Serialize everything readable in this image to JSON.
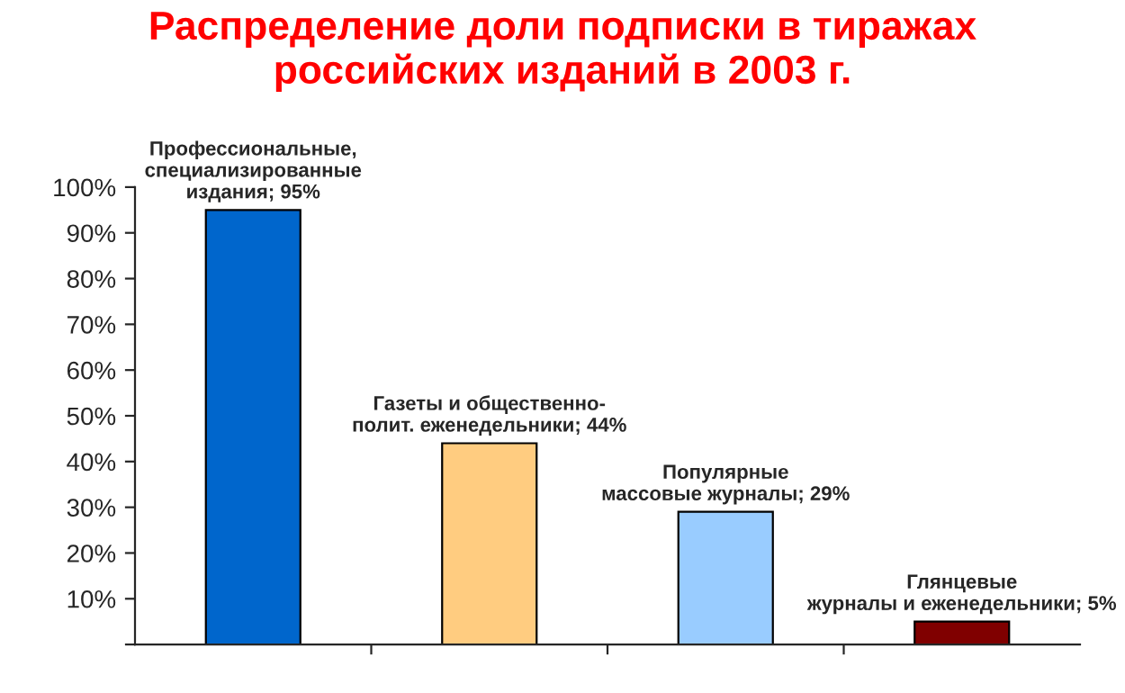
{
  "chart_data": {
    "type": "bar",
    "title": "Распределение доли подписки в тиражах\nроссийских изданий в 2003 г.",
    "categories": [
      null,
      null,
      null,
      null
    ],
    "values": [
      95,
      44,
      29,
      5
    ],
    "colors": [
      "#0066cc",
      "#ffcc80",
      "#99ccff",
      "#800000"
    ],
    "value_labels": [
      "Профессиональные,\nспециализированные\nиздания; 95%",
      "Газеты и общественно-\nполит. еженедельники; 44%",
      "Популярные\nмассовые журналы; 29%",
      "Глянцевые\nжурналы и еженедельники; 5%"
    ],
    "ylim": [
      0,
      100
    ],
    "yticks": [
      {
        "value": 0,
        "label": null
      },
      {
        "value": 10,
        "label": "10%"
      },
      {
        "value": 20,
        "label": "20%"
      },
      {
        "value": 30,
        "label": "30%"
      },
      {
        "value": 40,
        "label": "40%"
      },
      {
        "value": 50,
        "label": "50%"
      },
      {
        "value": 60,
        "label": "60%"
      },
      {
        "value": 70,
        "label": "70%"
      },
      {
        "value": 80,
        "label": "80%"
      },
      {
        "value": 90,
        "label": "90%"
      },
      {
        "value": 100,
        "label": "100%"
      }
    ],
    "grid": false,
    "legend": false
  }
}
